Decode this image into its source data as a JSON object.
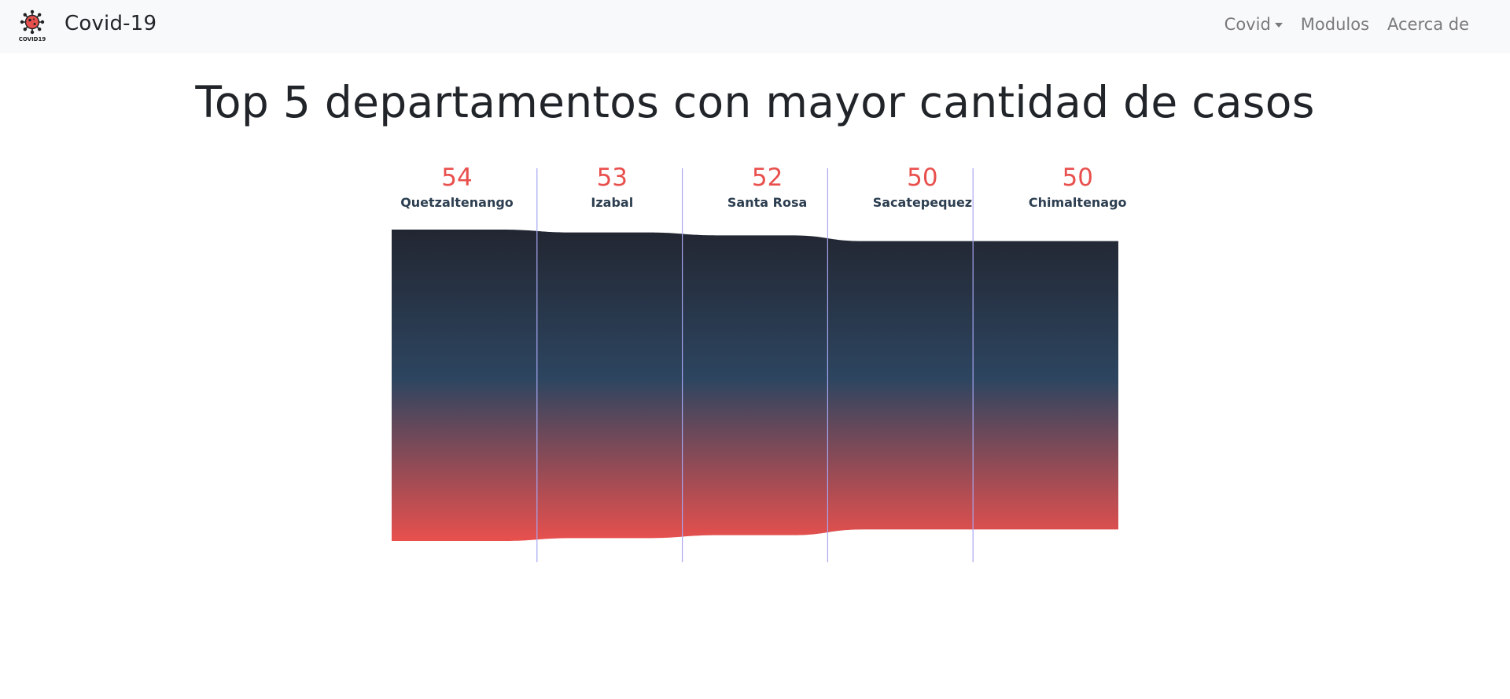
{
  "navbar": {
    "brand": "Covid-19",
    "logo_text": "COVID19",
    "links": [
      {
        "label": "Covid",
        "dropdown": true
      },
      {
        "label": "Modulos",
        "dropdown": false
      },
      {
        "label": "Acerca de",
        "dropdown": false
      }
    ]
  },
  "page": {
    "title": "Top 5 departamentos con mayor cantidad de casos"
  },
  "colors": {
    "value_label": "#e8504d",
    "category_label": "#2c3e50",
    "gradient_top": "#222631",
    "gradient_mid": "#2d4560",
    "gradient_bottom": "#e8504d",
    "divider": "#a7a6f2"
  },
  "chart_data": {
    "type": "funnel",
    "title": "Top 5 departamentos con mayor cantidad de casos",
    "categories": [
      "Quetzaltenango",
      "Izabal",
      "Santa Rosa",
      "Sacatepequez",
      "Chimaltenago"
    ],
    "values": [
      54,
      53,
      52,
      50,
      50
    ],
    "value_labels": [
      "54",
      "53",
      "52",
      "50",
      "50"
    ]
  }
}
